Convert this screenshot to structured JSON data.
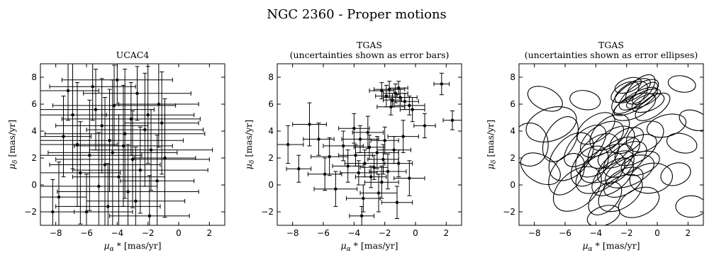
{
  "suptitle": "NGC 2360 - Proper motions",
  "panels": [
    {
      "title_lines": [
        "UCAC4"
      ],
      "xlabel_sym": "μ",
      "xlabel_sub": "α",
      "xlabel_rest": " * [mas/yr]",
      "ylabel_sym": "μ",
      "ylabel_sub": "δ",
      "ylabel_rest": " [mas/yr]"
    },
    {
      "title_lines": [
        "TGAS",
        "(uncertainties shown as error bars)"
      ],
      "xlabel_sym": "μ",
      "xlabel_sub": "α",
      "xlabel_rest": " * [mas/yr]",
      "ylabel_sym": "μ",
      "ylabel_sub": "δ",
      "ylabel_rest": " [mas/yr]"
    },
    {
      "title_lines": [
        "TGAS",
        "(uncertainties shown as error ellipses)"
      ],
      "xlabel_sym": "μ",
      "xlabel_sub": "α",
      "xlabel_rest": " * [mas/yr]",
      "ylabel_sym": "μ",
      "ylabel_sub": "δ",
      "ylabel_rest": " [mas/yr]"
    }
  ],
  "chart_data": [
    {
      "type": "scatter",
      "style": "errorbar",
      "title": "UCAC4",
      "xlabel": "μα * [mas/yr]",
      "ylabel": "μδ [mas/yr]",
      "xlim": [
        -9,
        3
      ],
      "ylim": [
        -3,
        9
      ],
      "xticks": [
        -8,
        -6,
        -4,
        -2,
        0,
        2
      ],
      "yticks": [
        -2,
        0,
        2,
        4,
        6,
        8
      ],
      "color": "#000000",
      "points": [
        {
          "x": -5.6,
          "y": 7.3,
          "ex": 2.8,
          "ey": 2.5
        },
        {
          "x": -2.7,
          "y": 6.8,
          "ex": 3.5,
          "ey": 2.0
        },
        {
          "x": -4.2,
          "y": 5.9,
          "ex": 4.0,
          "ey": 3.0
        },
        {
          "x": -1.3,
          "y": 6.0,
          "ex": 2.6,
          "ey": 3.2
        },
        {
          "x": -6.9,
          "y": 5.2,
          "ex": 2.2,
          "ey": 4.0
        },
        {
          "x": -3.1,
          "y": 4.9,
          "ex": 4.5,
          "ey": 2.7
        },
        {
          "x": -5.0,
          "y": 4.4,
          "ex": 3.0,
          "ey": 3.5
        },
        {
          "x": -2.2,
          "y": 4.1,
          "ex": 3.8,
          "ey": 4.2
        },
        {
          "x": -7.5,
          "y": 3.6,
          "ex": 1.8,
          "ey": 3.0
        },
        {
          "x": -4.5,
          "y": 3.3,
          "ex": 4.8,
          "ey": 3.8
        },
        {
          "x": -3.6,
          "y": 2.9,
          "ex": 3.2,
          "ey": 4.5
        },
        {
          "x": -1.8,
          "y": 2.6,
          "ex": 4.0,
          "ey": 3.0
        },
        {
          "x": -5.8,
          "y": 2.2,
          "ex": 3.4,
          "ey": 4.1
        },
        {
          "x": -3.0,
          "y": 1.9,
          "ex": 5.0,
          "ey": 3.6
        },
        {
          "x": -4.8,
          "y": 1.5,
          "ex": 3.6,
          "ey": 5.0
        },
        {
          "x": -2.5,
          "y": 1.1,
          "ex": 4.4,
          "ey": 3.2
        },
        {
          "x": -6.4,
          "y": 0.9,
          "ex": 2.6,
          "ey": 3.8
        },
        {
          "x": -3.9,
          "y": 0.6,
          "ex": 3.0,
          "ey": 4.6
        },
        {
          "x": -1.4,
          "y": 0.3,
          "ex": 2.4,
          "ey": 3.4
        },
        {
          "x": -5.2,
          "y": -0.1,
          "ex": 3.8,
          "ey": 4.0
        },
        {
          "x": -3.3,
          "y": -0.5,
          "ex": 4.6,
          "ey": 3.5
        },
        {
          "x": -7.8,
          "y": -0.9,
          "ex": 1.8,
          "ey": 2.6
        },
        {
          "x": -2.8,
          "y": -1.2,
          "ex": 3.2,
          "ey": 4.0
        },
        {
          "x": -4.6,
          "y": -1.6,
          "ex": 3.4,
          "ey": 3.2
        },
        {
          "x": -6.0,
          "y": -2.0,
          "ex": 3.0,
          "ey": 2.8
        },
        {
          "x": -1.9,
          "y": -2.3,
          "ex": 2.6,
          "ey": 3.0
        },
        {
          "x": -8.2,
          "y": -2.0,
          "ex": 1.4,
          "ey": 2.4
        },
        {
          "x": -4.0,
          "y": 7.8,
          "ex": 3.6,
          "ey": 1.8
        },
        {
          "x": -7.2,
          "y": 7.0,
          "ex": 2.0,
          "ey": 2.2
        },
        {
          "x": -0.9,
          "y": 2.0,
          "ex": 2.0,
          "ey": 4.4
        },
        {
          "x": -5.4,
          "y": 5.6,
          "ex": 3.8,
          "ey": 3.0
        },
        {
          "x": -3.5,
          "y": 3.8,
          "ex": 5.2,
          "ey": 4.8
        },
        {
          "x": -2.0,
          "y": 5.2,
          "ex": 3.0,
          "ey": 3.6
        },
        {
          "x": -6.6,
          "y": 3.0,
          "ex": 2.6,
          "ey": 4.6
        },
        {
          "x": -4.3,
          "y": 2.4,
          "ex": 4.2,
          "ey": 5.4
        },
        {
          "x": -1.1,
          "y": 4.6,
          "ex": 2.4,
          "ey": 3.8
        }
      ]
    },
    {
      "type": "scatter",
      "style": "errorbar",
      "title": "TGAS (uncertainties shown as error bars)",
      "xlabel": "μα * [mas/yr]",
      "ylabel": "μδ [mas/yr]",
      "xlim": [
        -9,
        3
      ],
      "ylim": [
        -3,
        9
      ],
      "xticks": [
        -8,
        -6,
        -4,
        -2,
        0,
        2
      ],
      "yticks": [
        -2,
        0,
        2,
        4,
        6,
        8
      ],
      "color": "#000000",
      "points": [
        {
          "x": -1.7,
          "y": 7.1,
          "ex": 1.0,
          "ey": 0.6
        },
        {
          "x": -1.3,
          "y": 6.8,
          "ex": 0.8,
          "ey": 0.7
        },
        {
          "x": -1.0,
          "y": 6.5,
          "ex": 1.1,
          "ey": 0.6
        },
        {
          "x": -1.9,
          "y": 6.6,
          "ex": 0.7,
          "ey": 0.8
        },
        {
          "x": -0.7,
          "y": 6.2,
          "ex": 0.9,
          "ey": 0.6
        },
        {
          "x": -1.5,
          "y": 6.3,
          "ex": 0.6,
          "ey": 0.5
        },
        {
          "x": -0.4,
          "y": 5.9,
          "ex": 1.0,
          "ey": 0.7
        },
        {
          "x": -2.2,
          "y": 7.0,
          "ex": 0.8,
          "ey": 0.6
        },
        {
          "x": -1.1,
          "y": 7.2,
          "ex": 0.6,
          "ey": 0.5
        },
        {
          "x": -0.2,
          "y": 5.6,
          "ex": 0.8,
          "ey": 0.9
        },
        {
          "x": -1.6,
          "y": 5.8,
          "ex": 0.9,
          "ey": 0.6
        },
        {
          "x": 1.7,
          "y": 7.5,
          "ex": 0.5,
          "ey": 0.8
        },
        {
          "x": 2.4,
          "y": 4.8,
          "ex": 0.6,
          "ey": 0.7
        },
        {
          "x": 0.6,
          "y": 4.4,
          "ex": 0.7,
          "ey": 0.9
        },
        {
          "x": -3.6,
          "y": 3.4,
          "ex": 1.2,
          "ey": 1.0
        },
        {
          "x": -3.0,
          "y": 2.8,
          "ex": 1.0,
          "ey": 0.9
        },
        {
          "x": -2.5,
          "y": 2.4,
          "ex": 1.4,
          "ey": 1.2
        },
        {
          "x": -3.9,
          "y": 2.2,
          "ex": 1.1,
          "ey": 0.8
        },
        {
          "x": -2.1,
          "y": 1.9,
          "ex": 1.0,
          "ey": 1.1
        },
        {
          "x": -3.3,
          "y": 1.6,
          "ex": 1.3,
          "ey": 1.0
        },
        {
          "x": -2.7,
          "y": 1.3,
          "ex": 0.9,
          "ey": 0.9
        },
        {
          "x": -1.8,
          "y": 1.0,
          "ex": 1.2,
          "ey": 1.3
        },
        {
          "x": -4.4,
          "y": 1.4,
          "ex": 1.0,
          "ey": 1.2
        },
        {
          "x": -1.4,
          "y": 2.6,
          "ex": 1.1,
          "ey": 1.0
        },
        {
          "x": -2.9,
          "y": 0.6,
          "ex": 1.0,
          "ey": 0.8
        },
        {
          "x": -3.7,
          "y": 0.9,
          "ex": 1.2,
          "ey": 0.9
        },
        {
          "x": -2.2,
          "y": 0.2,
          "ex": 1.1,
          "ey": 1.2
        },
        {
          "x": -4.7,
          "y": 2.9,
          "ex": 1.3,
          "ey": 1.1
        },
        {
          "x": -1.1,
          "y": 1.6,
          "ex": 0.9,
          "ey": 1.0
        },
        {
          "x": -3.1,
          "y": 3.9,
          "ex": 1.0,
          "ey": 1.2
        },
        {
          "x": -5.6,
          "y": 2.1,
          "ex": 1.2,
          "ey": 1.4
        },
        {
          "x": -6.3,
          "y": 3.4,
          "ex": 1.0,
          "ey": 1.2
        },
        {
          "x": -7.6,
          "y": 1.2,
          "ex": 0.8,
          "ey": 1.0
        },
        {
          "x": -6.9,
          "y": 4.5,
          "ex": 1.1,
          "ey": 1.6
        },
        {
          "x": -2.4,
          "y": -0.6,
          "ex": 1.2,
          "ey": 1.4
        },
        {
          "x": -1.2,
          "y": -1.3,
          "ex": 1.0,
          "ey": 1.2
        },
        {
          "x": -3.4,
          "y": -1.0,
          "ex": 1.1,
          "ey": 1.0
        },
        {
          "x": -5.2,
          "y": -0.3,
          "ex": 1.4,
          "ey": 1.3
        },
        {
          "x": -0.4,
          "y": 0.5,
          "ex": 1.0,
          "ey": 1.3
        },
        {
          "x": -2.0,
          "y": 3.3,
          "ex": 0.9,
          "ey": 1.0
        },
        {
          "x": -4.0,
          "y": 4.2,
          "ex": 1.0,
          "ey": 1.1
        },
        {
          "x": -3.5,
          "y": -2.3,
          "ex": 0.8,
          "ey": 0.7
        },
        {
          "x": -0.8,
          "y": 3.6,
          "ex": 1.0,
          "ey": 1.2
        },
        {
          "x": -8.3,
          "y": 3.0,
          "ex": 1.0,
          "ey": 1.4
        },
        {
          "x": -5.9,
          "y": 0.8,
          "ex": 1.1,
          "ey": 1.2
        }
      ]
    },
    {
      "type": "scatter",
      "style": "error_ellipses",
      "title": "TGAS (uncertainties shown as error ellipses)",
      "xlabel": "μα * [mas/yr]",
      "ylabel": "μδ [mas/yr]",
      "xlim": [
        -9,
        3
      ],
      "ylim": [
        -3,
        9
      ],
      "xticks": [
        -8,
        -6,
        -4,
        -2,
        0,
        2
      ],
      "yticks": [
        -2,
        0,
        2,
        4,
        6,
        8
      ],
      "color": "#000000",
      "ellipses": [
        {
          "x": -1.6,
          "y": 7.0,
          "a": 1.3,
          "b": 0.6,
          "angle": -30
        },
        {
          "x": -1.2,
          "y": 6.7,
          "a": 1.5,
          "b": 0.7,
          "angle": -35
        },
        {
          "x": -0.9,
          "y": 6.4,
          "a": 1.2,
          "b": 0.5,
          "angle": -25
        },
        {
          "x": -1.8,
          "y": 6.5,
          "a": 1.4,
          "b": 0.8,
          "angle": -40
        },
        {
          "x": -1.4,
          "y": 6.2,
          "a": 1.6,
          "b": 0.6,
          "angle": -30
        },
        {
          "x": -0.6,
          "y": 6.1,
          "a": 1.1,
          "b": 0.6,
          "angle": -20
        },
        {
          "x": -1.1,
          "y": 7.1,
          "a": 1.2,
          "b": 0.7,
          "angle": -45
        },
        {
          "x": -2.1,
          "y": 6.9,
          "a": 1.0,
          "b": 0.6,
          "angle": -30
        },
        {
          "x": -0.3,
          "y": 5.8,
          "a": 1.3,
          "b": 0.7,
          "angle": -35
        },
        {
          "x": -1.5,
          "y": 5.8,
          "a": 1.5,
          "b": 0.8,
          "angle": -25
        },
        {
          "x": -0.8,
          "y": 6.8,
          "a": 1.0,
          "b": 0.5,
          "angle": -40
        },
        {
          "x": -1.9,
          "y": 7.4,
          "a": 0.9,
          "b": 0.5,
          "angle": -20
        },
        {
          "x": 1.6,
          "y": 7.5,
          "a": 0.9,
          "b": 0.6,
          "angle": 10
        },
        {
          "x": 2.4,
          "y": 4.8,
          "a": 1.0,
          "b": 0.7,
          "angle": 20
        },
        {
          "x": 0.6,
          "y": 4.4,
          "a": 1.3,
          "b": 0.8,
          "angle": -15
        },
        {
          "x": -3.6,
          "y": 3.4,
          "a": 1.6,
          "b": 1.0,
          "angle": -35
        },
        {
          "x": -3.0,
          "y": 2.8,
          "a": 1.8,
          "b": 1.1,
          "angle": -40
        },
        {
          "x": -2.5,
          "y": 2.4,
          "a": 1.5,
          "b": 0.9,
          "angle": -30
        },
        {
          "x": -3.9,
          "y": 2.2,
          "a": 1.7,
          "b": 1.2,
          "angle": -45
        },
        {
          "x": -2.1,
          "y": 1.9,
          "a": 1.6,
          "b": 1.0,
          "angle": -35
        },
        {
          "x": -3.3,
          "y": 1.6,
          "a": 1.9,
          "b": 1.1,
          "angle": -30
        },
        {
          "x": -2.7,
          "y": 1.3,
          "a": 1.4,
          "b": 0.9,
          "angle": -40
        },
        {
          "x": -1.8,
          "y": 1.0,
          "a": 1.7,
          "b": 1.0,
          "angle": -25
        },
        {
          "x": -4.4,
          "y": 1.4,
          "a": 1.5,
          "b": 1.1,
          "angle": -50
        },
        {
          "x": -1.4,
          "y": 2.6,
          "a": 1.5,
          "b": 0.9,
          "angle": -30
        },
        {
          "x": -2.9,
          "y": 0.6,
          "a": 1.6,
          "b": 1.0,
          "angle": -40
        },
        {
          "x": -3.7,
          "y": 0.9,
          "a": 1.8,
          "b": 1.2,
          "angle": -35
        },
        {
          "x": -2.2,
          "y": 0.2,
          "a": 1.4,
          "b": 0.9,
          "angle": -30
        },
        {
          "x": -4.7,
          "y": 2.9,
          "a": 1.7,
          "b": 1.0,
          "angle": -45
        },
        {
          "x": -1.1,
          "y": 1.6,
          "a": 1.3,
          "b": 0.8,
          "angle": -20
        },
        {
          "x": -3.1,
          "y": 3.9,
          "a": 1.5,
          "b": 1.0,
          "angle": -40
        },
        {
          "x": -5.6,
          "y": 2.1,
          "a": 1.8,
          "b": 1.3,
          "angle": -50
        },
        {
          "x": -6.3,
          "y": 3.4,
          "a": 1.6,
          "b": 1.1,
          "angle": -60
        },
        {
          "x": -7.6,
          "y": 1.2,
          "a": 1.4,
          "b": 1.0,
          "angle": 30
        },
        {
          "x": -6.9,
          "y": 4.5,
          "a": 1.7,
          "b": 1.2,
          "angle": -20
        },
        {
          "x": -2.4,
          "y": -0.6,
          "a": 1.6,
          "b": 1.1,
          "angle": -35
        },
        {
          "x": -1.2,
          "y": -1.3,
          "a": 1.4,
          "b": 1.0,
          "angle": -25
        },
        {
          "x": -3.4,
          "y": -1.0,
          "a": 1.3,
          "b": 0.9,
          "angle": -45
        },
        {
          "x": -5.2,
          "y": -0.3,
          "a": 1.8,
          "b": 1.3,
          "angle": -40
        },
        {
          "x": -0.4,
          "y": 0.5,
          "a": 1.4,
          "b": 1.1,
          "angle": -10
        },
        {
          "x": -2.0,
          "y": 3.3,
          "a": 1.2,
          "b": 0.8,
          "angle": -30
        },
        {
          "x": -4.0,
          "y": 4.2,
          "a": 1.4,
          "b": 0.9,
          "angle": -35
        },
        {
          "x": -3.5,
          "y": -2.3,
          "a": 1.1,
          "b": 0.7,
          "angle": -20
        },
        {
          "x": -0.8,
          "y": 3.6,
          "a": 1.3,
          "b": 1.0,
          "angle": -30
        },
        {
          "x": -8.3,
          "y": 3.0,
          "a": 1.2,
          "b": 1.6,
          "angle": 0
        },
        {
          "x": -5.9,
          "y": 0.8,
          "a": 1.5,
          "b": 1.1,
          "angle": -55
        },
        {
          "x": 1.6,
          "y": 3.1,
          "a": 1.0,
          "b": 0.7,
          "angle": 15
        },
        {
          "x": -7.3,
          "y": 6.4,
          "a": 1.2,
          "b": 0.8,
          "angle": 25
        },
        {
          "x": 2.2,
          "y": -1.6,
          "a": 1.0,
          "b": 0.8,
          "angle": 0
        },
        {
          "x": -4.7,
          "y": 6.3,
          "a": 1.0,
          "b": 0.7,
          "angle": 10
        },
        {
          "x": 1.2,
          "y": 0.8,
          "a": 1.0,
          "b": 0.8,
          "angle": -20
        }
      ]
    }
  ]
}
